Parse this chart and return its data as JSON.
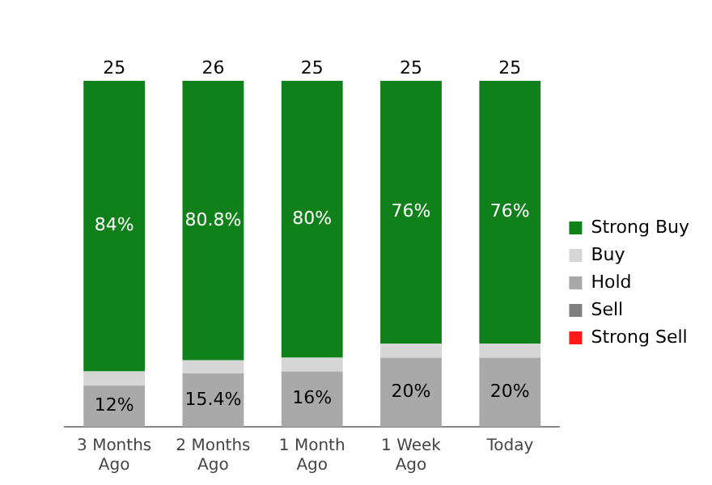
{
  "chart_data": {
    "type": "bar",
    "stacked": true,
    "categories": [
      "3 Months Ago",
      "2 Months Ago",
      "1 Month Ago",
      "1 Week Ago",
      "Today"
    ],
    "series": [
      {
        "name": "Strong Sell",
        "color": "#ff1a1a",
        "values": [
          null,
          null,
          null,
          null,
          null
        ]
      },
      {
        "name": "Sell",
        "color": "#808080",
        "values": [
          null,
          null,
          null,
          null,
          null
        ]
      },
      {
        "name": "Hold",
        "color": "#a9a9a9",
        "values": [
          12,
          15.4,
          16,
          20,
          20
        ],
        "value_labels": [
          "12%",
          "15.4%",
          "16%",
          "20%",
          "20%"
        ]
      },
      {
        "name": "Buy",
        "color": "#d6d6d6",
        "values": [
          4,
          3.8,
          4,
          4,
          4
        ]
      },
      {
        "name": "Strong Buy",
        "color": "#10801a",
        "values": [
          84,
          80.8,
          80,
          76,
          76
        ],
        "value_labels": [
          "84%",
          "80.8%",
          "80%",
          "76%",
          "76%"
        ]
      }
    ],
    "annotations": [
      {
        "text": "25",
        "x": "3 Months Ago",
        "y": 100
      },
      {
        "text": "26",
        "x": "2 Months Ago",
        "y": 100
      },
      {
        "text": "25",
        "x": "1 Month Ago",
        "y": 100
      },
      {
        "text": "25",
        "x": "1 Week Ago",
        "y": 100
      },
      {
        "text": "25",
        "x": "Today",
        "y": 100
      }
    ],
    "legend": "right",
    "grid": false
  }
}
